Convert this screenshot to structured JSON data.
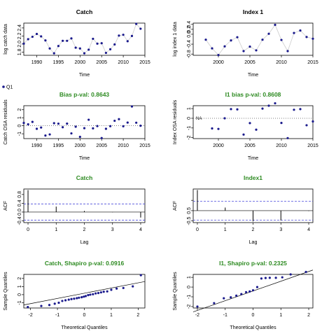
{
  "chart_data": [
    {
      "type": "scatter",
      "title": "Catch",
      "title_color": "#000000",
      "xlabel": "Time",
      "ylabel": "log catch data",
      "xlim": [
        1987,
        2015
      ],
      "ylim": [
        1.72,
        2.52
      ],
      "xticks": [
        1990,
        1995,
        2000,
        2005,
        2010,
        2015
      ],
      "yticks": [
        1.8,
        2.0,
        2.2,
        2.4
      ],
      "ytick_labels": [
        "1.8",
        "2.0",
        "2.2",
        "2.4"
      ],
      "grid": false,
      "baseline": null,
      "series": [
        {
          "color": "#1a1a8c",
          "line_color": "#cccccc",
          "connect": true,
          "x": [
            1987,
            1988,
            1989,
            1990,
            1991,
            1992,
            1993,
            1994,
            1995,
            1996,
            1997,
            1998,
            1999,
            2000,
            2001,
            2002,
            2003,
            2004,
            2005,
            2006,
            2007,
            2008,
            2009,
            2010,
            2011,
            2012,
            2013,
            2014
          ],
          "y": [
            2.01,
            2.12,
            2.18,
            2.25,
            2.19,
            2.09,
            1.89,
            1.77,
            1.95,
            2.08,
            2.08,
            2.14,
            1.91,
            1.89,
            1.77,
            1.86,
            2.13,
            2.01,
            2.02,
            1.78,
            1.87,
            1.99,
            2.21,
            2.23,
            2.07,
            2.2,
            2.5,
            2.38
          ]
        }
      ],
      "legend": [
        "Q1"
      ],
      "legend_position": "below-left"
    },
    {
      "type": "scatter",
      "title": "Index 1",
      "title_color": "#000000",
      "xlabel": "Time",
      "ylabel": "log index 1 data",
      "xlim": [
        1996,
        2015
      ],
      "ylim": [
        -0.85,
        0.45
      ],
      "xticks": [
        2000,
        2005,
        2010,
        2015
      ],
      "yticks": [
        -0.8,
        -0.4,
        0.0,
        0.2,
        0.4
      ],
      "ytick_labels": [
        "-0.8",
        "-0.4",
        "0.0",
        "0.2",
        "0.4"
      ],
      "grid": false,
      "baseline": null,
      "series": [
        {
          "color": "#1a1a8c",
          "line_color": "#cccccc",
          "connect": true,
          "x": [
            1998,
            1999,
            2000,
            2001,
            2002,
            2003,
            2004,
            2005,
            2006,
            2007,
            2008,
            2009,
            2010,
            2011,
            2012,
            2013,
            2014,
            2015
          ],
          "y": [
            -0.22,
            -0.57,
            -0.84,
            -0.49,
            -0.25,
            -0.12,
            -0.68,
            -0.5,
            -0.65,
            -0.22,
            0.02,
            0.38,
            -0.23,
            -0.68,
            0.05,
            0.15,
            -0.11,
            -0.18
          ]
        }
      ]
    },
    {
      "type": "scatter",
      "title": "Bias p-val: 0.8643",
      "title_color": "#2e8b22",
      "xlabel": "Time",
      "ylabel": "Catch OSA residuals",
      "xlim": [
        1987,
        2015
      ],
      "ylim": [
        -1.6,
        2.5
      ],
      "xticks": [
        1990,
        1995,
        2000,
        2005,
        2010,
        2015
      ],
      "yticks": [
        -1,
        0,
        1,
        2
      ],
      "ytick_labels": [
        "-1",
        "0",
        "1",
        "2"
      ],
      "grid": false,
      "baseline": 0,
      "series": [
        {
          "color": "#1a1a8c",
          "connect": false,
          "x": [
            1987,
            1988,
            1989,
            1990,
            1991,
            1992,
            1993,
            1994,
            1995,
            1996,
            1997,
            1998,
            1999,
            2000,
            2001,
            2002,
            2003,
            2004,
            2005,
            2006,
            2007,
            2008,
            2009,
            2010,
            2011,
            2012,
            2013,
            2014
          ],
          "y": [
            0.35,
            0.18,
            0.48,
            -0.38,
            -0.22,
            -1.22,
            -1.08,
            0.32,
            0.26,
            -0.18,
            0.27,
            -0.95,
            -0.12,
            -1.38,
            -0.3,
            0.75,
            -0.32,
            -0.04,
            -1.53,
            -0.38,
            -0.05,
            0.62,
            0.82,
            -0.06,
            0.4,
            2.4,
            0.38,
            0.0
          ]
        }
      ]
    },
    {
      "type": "scatter",
      "title": "I1 bias p-val: 0.8608",
      "title_color": "#2e8b22",
      "xlabel": "Time",
      "ylabel": "Index OSA residuals",
      "xlim": [
        1996,
        2015
      ],
      "ylim": [
        -2.1,
        1.3
      ],
      "xticks": [
        2000,
        2005,
        2010,
        2015
      ],
      "yticks": [
        -2,
        -1,
        0,
        1
      ],
      "ytick_labels": [
        "-2",
        "-1",
        "0",
        "1"
      ],
      "grid": false,
      "baseline": 0,
      "annotation": "NA",
      "series": [
        {
          "color": "#1a1a8c",
          "connect": false,
          "x": [
            1999,
            2000,
            2001,
            2002,
            2003,
            2004,
            2005,
            2006,
            2007,
            2008,
            2009,
            2010,
            2011,
            2012,
            2013,
            2014,
            2015
          ],
          "y": [
            -1.05,
            -1.1,
            0.0,
            0.95,
            0.92,
            -1.68,
            -0.5,
            -1.18,
            1.0,
            1.3,
            1.55,
            -0.48,
            -2.05,
            0.88,
            0.95,
            -0.72,
            -0.33
          ]
        }
      ]
    },
    {
      "type": "bar",
      "title": "Catch",
      "title_color": "#2e8b22",
      "xlabel": "Lag",
      "ylabel": "ACF",
      "xlim": [
        -0.15,
        4.15
      ],
      "ylim": [
        -0.48,
        1.05
      ],
      "xticks": [
        0,
        1,
        2,
        3,
        4
      ],
      "yticks": [
        -0.4,
        0.0,
        0.4,
        0.8
      ],
      "ytick_labels": [
        "-0.4",
        "0.0",
        "0.4",
        "0.8"
      ],
      "grid": false,
      "lags": [
        0,
        1,
        2,
        3,
        4
      ],
      "acf": [
        1.0,
        0.25,
        0.05,
        -0.01,
        -0.25
      ],
      "confidence_band": [
        -0.37,
        0.37
      ],
      "band_color": "#4a4adc"
    },
    {
      "type": "bar",
      "title": "Index1",
      "title_color": "#2e8b22",
      "xlabel": "Lag",
      "ylabel": "ACF",
      "xlim": [
        -0.15,
        4.15
      ],
      "ylim": [
        -0.58,
        1.05
      ],
      "xticks": [
        0,
        1,
        2,
        3,
        4
      ],
      "yticks": [
        -0.5,
        0.0,
        0.5
      ],
      "ytick_labels": [
        "-0.5",
        "0.5"
      ],
      "grid": false,
      "lags": [
        0,
        1,
        2,
        3,
        4
      ],
      "acf": [
        1.0,
        0.15,
        -0.52,
        -0.48,
        -0.02
      ],
      "confidence_band": [
        -0.46,
        0.46
      ],
      "band_color": "#4a4adc"
    },
    {
      "type": "scatter",
      "title": "Catch, Shapiro p-val: 0.0916",
      "title_color": "#2e8b22",
      "xlabel": "Theoretical Quantiles",
      "ylabel": "Sample Quantiles",
      "xlim": [
        -2.25,
        2.25
      ],
      "ylim": [
        -1.65,
        2.5
      ],
      "xticks": [
        -2,
        -1,
        0,
        1,
        2
      ],
      "yticks": [
        -1,
        0,
        1,
        2
      ],
      "ytick_labels": [
        "-1",
        "0",
        "1",
        "2"
      ],
      "grid": false,
      "baseline": null,
      "reference_line": [
        [
          -2.25,
          -1.27
        ],
        [
          2.25,
          1.62
        ]
      ],
      "series": [
        {
          "color": "#1a1a8c",
          "connect": false,
          "x": [
            -2.1,
            -1.6,
            -1.3,
            -1.1,
            -0.95,
            -0.82,
            -0.7,
            -0.58,
            -0.48,
            -0.38,
            -0.28,
            -0.2,
            -0.1,
            -0.02,
            0.05,
            0.14,
            0.22,
            0.32,
            0.42,
            0.52,
            0.62,
            0.72,
            0.85,
            1.0,
            1.2,
            1.45,
            1.8,
            2.1
          ],
          "y": [
            -1.53,
            -1.4,
            -1.28,
            -1.12,
            -1.0,
            -0.78,
            -0.7,
            -0.62,
            -0.55,
            -0.5,
            -0.44,
            -0.38,
            -0.32,
            -0.25,
            -0.18,
            -0.06,
            0.0,
            0.05,
            0.15,
            0.2,
            0.28,
            0.36,
            0.4,
            0.6,
            0.75,
            0.82,
            1.02,
            2.4
          ]
        }
      ]
    },
    {
      "type": "scatter",
      "title": "I1, Shapiro p-val: 0.2325",
      "title_color": "#2e8b22",
      "xlabel": "Theoretical Quantiles",
      "ylabel": "Sample Quantiles",
      "xlim": [
        -2.15,
        2.15
      ],
      "ylim": [
        -2.15,
        1.3
      ],
      "xticks": [
        -2,
        -1,
        0,
        1,
        2
      ],
      "yticks": [
        -2,
        -1,
        0,
        1
      ],
      "ytick_labels": [
        "-2",
        "-1",
        "0",
        "1"
      ],
      "grid": false,
      "baseline": null,
      "reference_line": [
        [
          -2.15,
          -2.55
        ],
        [
          2.15,
          1.75
        ]
      ],
      "series": [
        {
          "color": "#1a1a8c",
          "connect": false,
          "x": [
            -2.0,
            -1.4,
            -1.05,
            -0.8,
            -0.6,
            -0.42,
            -0.25,
            -0.12,
            0.0,
            0.15,
            0.3,
            0.45,
            0.6,
            0.82,
            1.05,
            1.35,
            1.9
          ],
          "y": [
            -2.0,
            -1.65,
            -1.15,
            -1.05,
            -0.88,
            -0.72,
            -0.52,
            -0.45,
            -0.33,
            0.0,
            0.88,
            0.93,
            0.95,
            0.95,
            1.0,
            1.3,
            1.55
          ]
        }
      ]
    }
  ]
}
